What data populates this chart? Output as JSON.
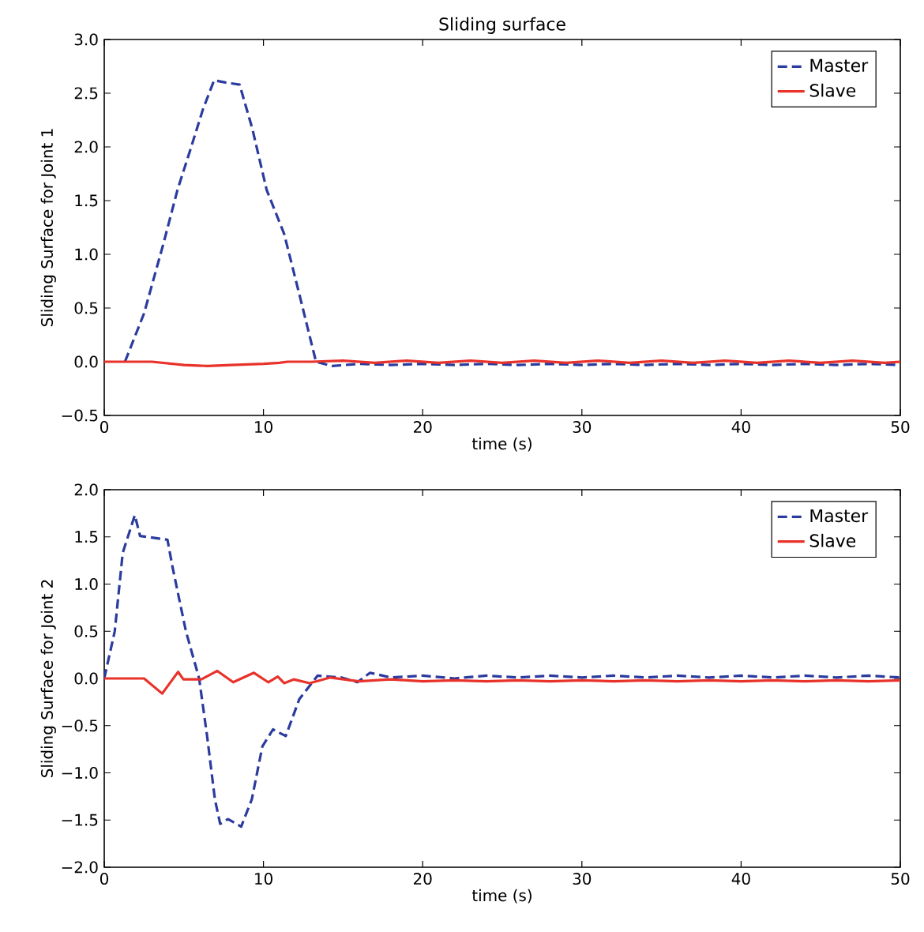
{
  "chart_data": [
    {
      "type": "line",
      "title": "Sliding surface",
      "xlabel": "time (s)",
      "ylabel": "Sliding Surface for Joint 1",
      "xlim": [
        0,
        50
      ],
      "ylim": [
        -0.5,
        3.0
      ],
      "xticks": [
        0,
        10,
        20,
        30,
        40,
        50
      ],
      "yticks": [
        {
          "value": -0.5,
          "label": "−0.5"
        },
        {
          "value": 0,
          "label": "0.0"
        },
        {
          "value": 0.5,
          "label": "0.5"
        },
        {
          "value": 1.0,
          "label": "1.0"
        },
        {
          "value": 1.5,
          "label": "1.5"
        },
        {
          "value": 2.0,
          "label": "2.0"
        },
        {
          "value": 2.5,
          "label": "2.5"
        },
        {
          "value": 3.0,
          "label": "3.0"
        }
      ],
      "grid": false,
      "legend": "top right",
      "series": [
        {
          "name": "Master",
          "color": "#2b3b9e",
          "line_style": "dashed",
          "x": [
            1.3,
            2.5,
            3.7,
            4.6,
            5.4,
            6.2,
            6.9,
            7.6,
            8.5,
            9.3,
            10.2,
            11.3,
            12.3,
            13.3,
            14.3,
            16,
            18,
            20,
            22,
            24,
            26,
            28,
            30,
            32,
            34,
            36,
            38,
            40,
            42,
            44,
            46,
            48,
            50
          ],
          "values": [
            0,
            0.45,
            1.09,
            1.6,
            1.97,
            2.35,
            2.62,
            2.6,
            2.58,
            2.17,
            1.6,
            1.19,
            0.6,
            0.0,
            -0.04,
            -0.02,
            -0.03,
            -0.02,
            -0.03,
            -0.02,
            -0.03,
            -0.02,
            -0.03,
            -0.02,
            -0.03,
            -0.02,
            -0.03,
            -0.02,
            -0.03,
            -0.02,
            -0.03,
            -0.02,
            -0.03
          ]
        },
        {
          "name": "Slave",
          "color": "#e8322a",
          "line_style": "solid",
          "x": [
            0,
            3,
            5,
            6.5,
            8,
            10,
            11,
            11.5,
            13,
            15,
            17,
            19,
            21,
            23,
            25,
            27,
            29,
            31,
            33,
            35,
            37,
            39,
            41,
            43,
            45,
            47,
            49,
            50
          ],
          "values": [
            0,
            0,
            -0.03,
            -0.04,
            -0.03,
            -0.02,
            -0.01,
            0,
            0,
            0.01,
            -0.01,
            0.01,
            -0.01,
            0.01,
            -0.01,
            0.01,
            -0.01,
            0.01,
            -0.01,
            0.01,
            -0.01,
            0.01,
            -0.01,
            0.01,
            -0.01,
            0.01,
            -0.01,
            0
          ]
        }
      ]
    },
    {
      "type": "line",
      "xlabel": "time (s)",
      "ylabel": "Sliding Surface for Joint 2",
      "xlim": [
        0,
        50
      ],
      "ylim": [
        -2.0,
        2.0
      ],
      "xticks": [
        0,
        10,
        20,
        30,
        40,
        50
      ],
      "yticks": [
        {
          "value": -2.0,
          "label": "−2.0"
        },
        {
          "value": -1.5,
          "label": "−1.5"
        },
        {
          "value": -1.0,
          "label": "−1.0"
        },
        {
          "value": -0.5,
          "label": "−0.5"
        },
        {
          "value": 0,
          "label": "0.0"
        },
        {
          "value": 0.5,
          "label": "0.5"
        },
        {
          "value": 1.0,
          "label": "1.0"
        },
        {
          "value": 1.5,
          "label": "1.5"
        },
        {
          "value": 2.0,
          "label": "2.0"
        }
      ],
      "grid": false,
      "legend": "top right",
      "series": [
        {
          "name": "Master",
          "color": "#2b3b9e",
          "line_style": "dashed",
          "x": [
            0,
            0.66,
            1.16,
            1.92,
            2.25,
            3.97,
            4.3,
            5.13,
            5.96,
            6.46,
            6.95,
            7.28,
            7.78,
            8.6,
            9.27,
            9.93,
            10.6,
            11.4,
            12.25,
            13.4,
            14.9,
            15.9,
            16.7,
            18,
            20,
            22,
            24,
            26,
            28,
            30,
            32,
            34,
            36,
            38,
            40,
            42,
            44,
            46,
            48,
            50
          ],
          "values": [
            0,
            0.5,
            1.33,
            1.73,
            1.51,
            1.47,
            1.17,
            0.5,
            0,
            -0.61,
            -1.28,
            -1.54,
            -1.49,
            -1.57,
            -1.28,
            -0.72,
            -0.54,
            -0.61,
            -0.22,
            0.03,
            0.01,
            -0.04,
            0.06,
            0.01,
            0.03,
            0.0,
            0.03,
            0.01,
            0.03,
            0.01,
            0.03,
            0.01,
            0.03,
            0.01,
            0.03,
            0.01,
            0.03,
            0.01,
            0.03,
            0.01
          ]
        },
        {
          "name": "Slave",
          "color": "#e8322a",
          "line_style": "solid",
          "x": [
            0,
            2.5,
            3.64,
            4.64,
            4.97,
            6.1,
            7.1,
            8.1,
            9.4,
            10.3,
            10.9,
            11.3,
            11.9,
            12.9,
            14.2,
            16,
            18,
            20,
            22,
            24,
            26,
            28,
            30,
            32,
            34,
            36,
            38,
            40,
            42,
            44,
            46,
            48,
            50
          ],
          "values": [
            0,
            0,
            -0.16,
            0.07,
            -0.01,
            -0.01,
            0.08,
            -0.04,
            0.06,
            -0.04,
            0.02,
            -0.05,
            -0.01,
            -0.05,
            0.01,
            -0.03,
            -0.01,
            -0.03,
            -0.02,
            -0.03,
            -0.02,
            -0.03,
            -0.02,
            -0.03,
            -0.02,
            -0.03,
            -0.02,
            -0.03,
            -0.02,
            -0.03,
            -0.02,
            -0.03,
            -0.02
          ]
        }
      ]
    }
  ]
}
